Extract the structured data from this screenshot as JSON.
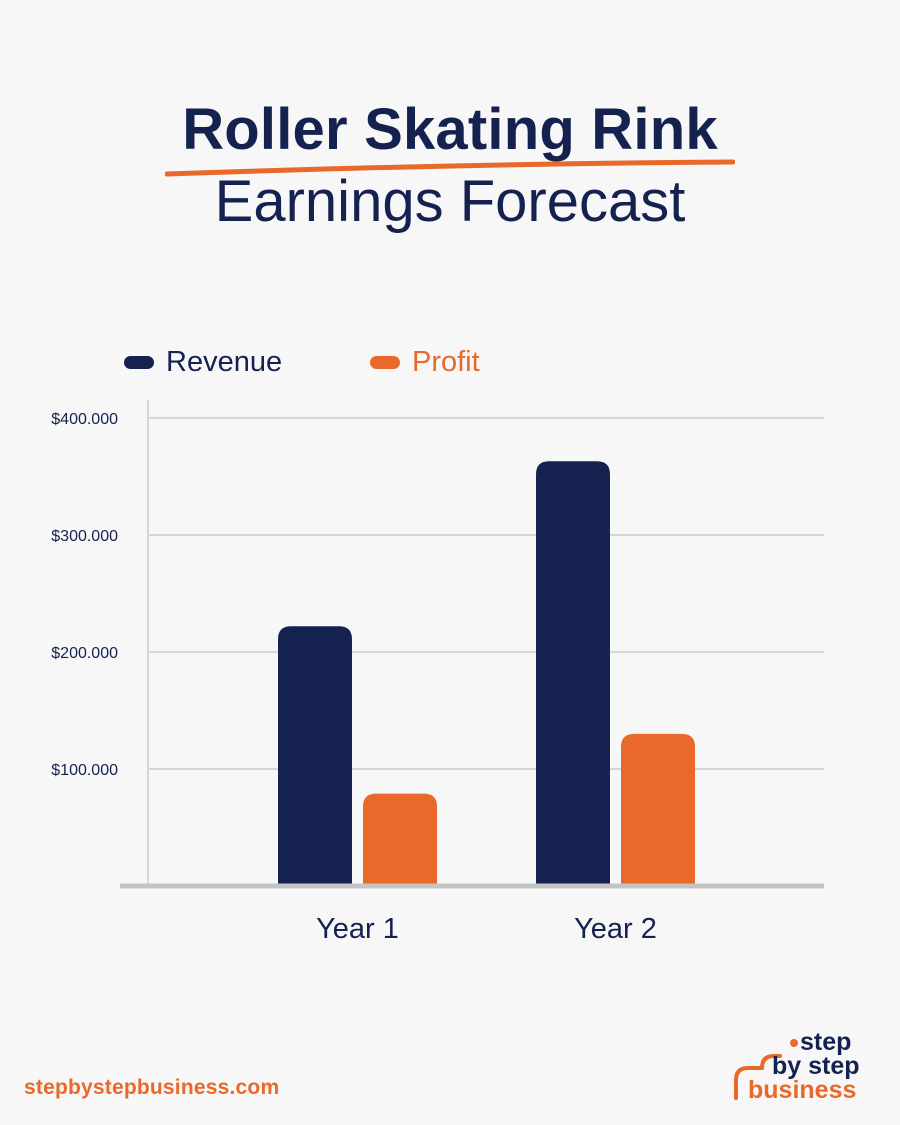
{
  "header": {
    "title_line1": "Roller Skating Rink",
    "title_line2": "Earnings Forecast"
  },
  "colors": {
    "revenue": "#15224f",
    "profit": "#e8692a",
    "grid": "#d6d6d6",
    "axis": "#c4c4c4",
    "text": "#15224f"
  },
  "chart_data": {
    "type": "bar",
    "categories": [
      "Year 1",
      "Year 2"
    ],
    "series": [
      {
        "name": "Revenue",
        "values": [
          222000,
          363000
        ]
      },
      {
        "name": "Profit",
        "values": [
          79000,
          130000
        ]
      }
    ],
    "ylim": [
      0,
      400000
    ],
    "yticks": [
      100000,
      200000,
      300000,
      400000
    ],
    "ytick_labels": [
      "$100.000",
      "$200.000",
      "$300.000",
      "$400.000"
    ],
    "grid": true,
    "legend": "top-left"
  },
  "footer": {
    "url": "stepbystepbusiness.com",
    "logo_words": [
      "step",
      "by step",
      "business"
    ]
  }
}
